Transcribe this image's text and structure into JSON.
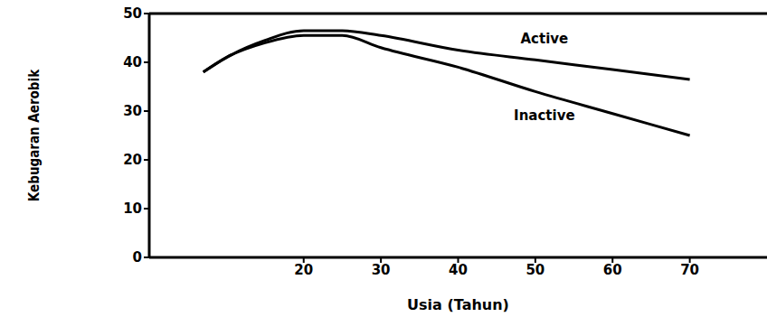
{
  "chart_data": {
    "type": "line",
    "x_label": "Usia (Tahun)",
    "y_label": "Kebugaran Aerobik",
    "x": [
      7,
      10,
      15,
      20,
      25,
      30,
      40,
      50,
      60,
      70
    ],
    "series": [
      {
        "name": "Active",
        "color": "#000000",
        "values": [
          38,
          41,
          44.5,
          46.5,
          46.5,
          45.5,
          42.5,
          40.5,
          38.5,
          36.5
        ]
      },
      {
        "name": "Inactive",
        "color": "#000000",
        "values": [
          38,
          41,
          44,
          45.5,
          45.5,
          43,
          39,
          34,
          29.5,
          25
        ]
      }
    ],
    "xlim": [
      0,
      80
    ],
    "xticks": [
      20,
      30,
      40,
      50,
      60,
      70
    ],
    "ylim": [
      0,
      50
    ],
    "yticks": [
      0,
      10,
      20,
      30,
      40,
      50
    ],
    "grid": false
  }
}
